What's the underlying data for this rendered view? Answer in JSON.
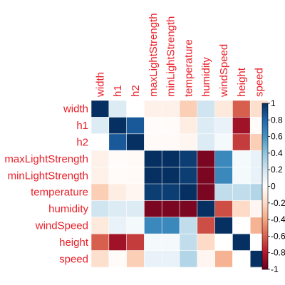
{
  "chart_data": {
    "type": "heatmap",
    "variables": [
      "width",
      "h1",
      "h2",
      "maxLightStrength",
      "minLightStrength",
      "temperature",
      "humidity",
      "windSpeed",
      "height",
      "speed"
    ],
    "matrix": [
      [
        1.0,
        0.15,
        0.0,
        -0.08,
        -0.08,
        -0.25,
        0.2,
        -0.12,
        -0.6,
        -0.18
      ],
      [
        0.15,
        1.0,
        0.85,
        -0.02,
        -0.02,
        -0.1,
        0.15,
        0.1,
        -0.85,
        -0.02
      ],
      [
        0.0,
        0.85,
        1.0,
        -0.03,
        -0.03,
        -0.05,
        0.15,
        0.05,
        -0.7,
        -0.25
      ],
      [
        -0.08,
        -0.02,
        -0.03,
        1.0,
        1.0,
        0.95,
        -0.95,
        0.65,
        0.05,
        0.1
      ],
      [
        -0.08,
        -0.02,
        -0.03,
        1.0,
        1.0,
        0.95,
        -0.95,
        0.65,
        0.05,
        0.1
      ],
      [
        -0.25,
        -0.1,
        -0.05,
        0.95,
        0.95,
        1.0,
        -0.95,
        0.25,
        0.25,
        0.3
      ],
      [
        0.2,
        0.15,
        0.15,
        -0.95,
        -0.95,
        -0.95,
        1.0,
        -0.65,
        -0.2,
        -0.05
      ],
      [
        -0.12,
        0.1,
        0.05,
        0.65,
        0.65,
        0.25,
        -0.65,
        1.0,
        0.0,
        -0.35
      ],
      [
        -0.6,
        -0.85,
        -0.7,
        0.05,
        0.05,
        0.25,
        -0.2,
        0.0,
        1.0,
        0.0
      ],
      [
        -0.18,
        -0.02,
        -0.25,
        0.1,
        0.1,
        0.3,
        -0.05,
        -0.35,
        0.0,
        1.0
      ]
    ],
    "color_scale": {
      "min": -1,
      "max": 1,
      "stops": [
        "#67001f",
        "#b2182b",
        "#d6604d",
        "#f4a582",
        "#fddbc7",
        "#ffffff",
        "#d1e5f0",
        "#92c5de",
        "#4393c3",
        "#2166ac",
        "#053061"
      ]
    },
    "colorbar_ticks": [
      "1",
      "0.8",
      "0.6",
      "0.4",
      "0.2",
      "0",
      "-0.2",
      "-0.4",
      "-0.6",
      "-0.8",
      "-1"
    ],
    "label_color": "#e8202a"
  }
}
